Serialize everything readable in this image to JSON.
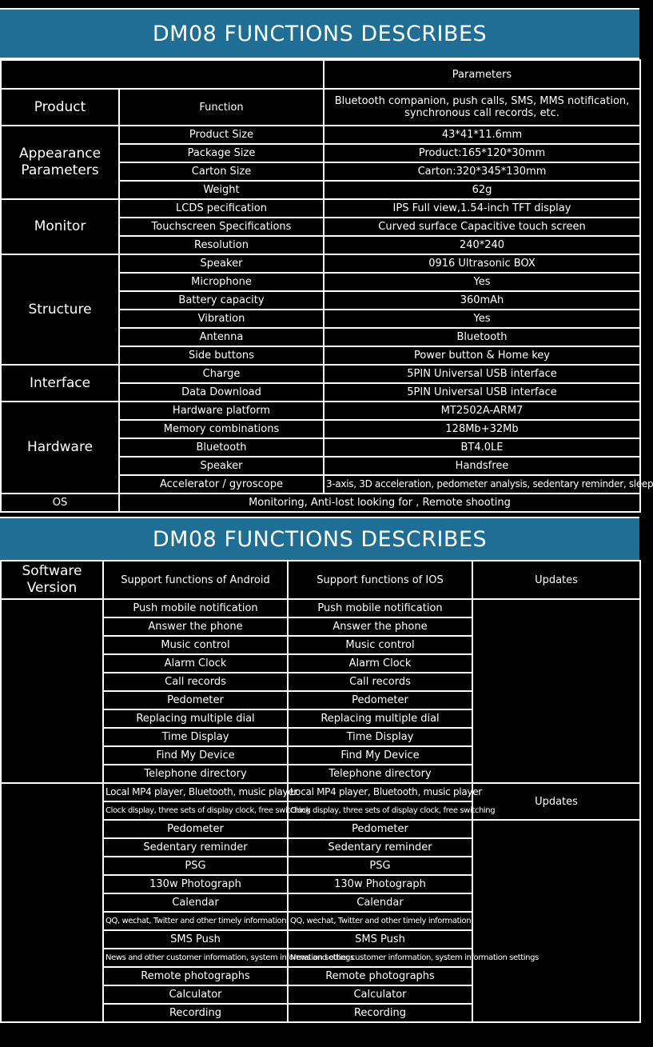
{
  "title": "DM08 FUNCTIONS DESCRIBES",
  "spec": {
    "header_parameters": "Parameters",
    "rows": [
      {
        "category": "Product",
        "name": "Function",
        "value": "Bluetooth companion, push calls, SMS, MMS notification, synchronous call records, etc."
      },
      {
        "category": "Appearance Parameters",
        "name": "Product Size",
        "value": "43*41*11.6mm"
      },
      {
        "name": "Package Size",
        "value": "Product:165*120*30mm"
      },
      {
        "name": "Carton Size",
        "value": "Carton:320*345*130mm"
      },
      {
        "name": "Weight",
        "value": "62g"
      },
      {
        "category": "Monitor",
        "name": "LCDS pecification",
        "value": "IPS Full view,1.54-inch TFT display"
      },
      {
        "name": "Touchscreen Specifications",
        "value": "Curved surface Capacitive touch screen"
      },
      {
        "name": "Resolution",
        "value": "240*240"
      },
      {
        "category": "Structure",
        "name": "Speaker",
        "value": "0916 Ultrasonic BOX"
      },
      {
        "name": "Microphone",
        "value": "Yes"
      },
      {
        "name": "Battery capacity",
        "value": "360mAh"
      },
      {
        "name": "Vibration",
        "value": "Yes"
      },
      {
        "name": "Antenna",
        "value": "Bluetooth"
      },
      {
        "name": "Side buttons",
        "value": "Power button & Home key"
      },
      {
        "category": "Interface",
        "name": "Charge",
        "value": "5PIN Universal USB interface"
      },
      {
        "name": "Data Download",
        "value": "5PIN Universal USB interface"
      },
      {
        "category": "Hardware",
        "name": "Hardware platform",
        "value": "MT2502A-ARM7"
      },
      {
        "name": "Memory combinations",
        "value": "128Mb+32Mb"
      },
      {
        "name": "Bluetooth",
        "value": "BT4.0LE"
      },
      {
        "name": "Speaker",
        "value": "Handsfree"
      },
      {
        "name": "Accelerator / gyroscope",
        "value": "3-axis, 3D acceleration, pedometer analysis, sedentary reminder, sleep"
      }
    ],
    "os": {
      "label": "OS",
      "value": "Monitoring, Anti-lost looking for , Remote shooting"
    }
  },
  "software": {
    "headers": {
      "version": "Software Version",
      "android": "Support functions of Android",
      "ios": "Support functions of IOS",
      "updates": "Updates"
    },
    "group1": [
      {
        "android": "Push mobile notification",
        "ios": "Push mobile notification"
      },
      {
        "android": "Answer the phone",
        "ios": "Answer the phone"
      },
      {
        "android": "Music control",
        "ios": "Music control"
      },
      {
        "android": "Alarm Clock",
        "ios": "Alarm Clock"
      },
      {
        "android": "Call records",
        "ios": "Call records"
      },
      {
        "android": "Pedometer",
        "ios": "Pedometer"
      },
      {
        "android": "Replacing multiple dial",
        "ios": "Replacing multiple dial"
      },
      {
        "android": "Time Display",
        "ios": "Time Display"
      },
      {
        "android": "Find My Device",
        "ios": "Find My Device"
      },
      {
        "android": "Telephone directory",
        "ios": "Telephone directory"
      }
    ],
    "group2_updates": "Updates",
    "group2": [
      {
        "android": "Local MP4 player, Bluetooth, music player",
        "ios": "Local MP4 player, Bluetooth, music player"
      },
      {
        "android": "Clock display, three sets of display clock, free switching",
        "ios": "Clock display, three sets of display clock, free switching",
        "small": true
      },
      {
        "android": "Pedometer",
        "ios": "Pedometer"
      },
      {
        "android": "Sedentary reminder",
        "ios": "Sedentary reminder"
      },
      {
        "android": "PSG",
        "ios": "PSG"
      },
      {
        "android": "130w Photograph",
        "ios": "130w Photograph"
      },
      {
        "android": "Calendar",
        "ios": "Calendar"
      },
      {
        "android": "QQ, wechat, Twitter and other timely information",
        "ios": "QQ, wechat, Twitter and other timely information",
        "small": true
      },
      {
        "android": "SMS Push",
        "ios": "SMS Push"
      },
      {
        "android": "News and other customer information, system information settings",
        "ios": "News and other customer information, system information settings",
        "small": true
      },
      {
        "android": "Remote photographs",
        "ios": "Remote photographs"
      },
      {
        "android": "Calculator",
        "ios": "Calculator"
      },
      {
        "android": "Recording",
        "ios": "Recording"
      }
    ]
  }
}
